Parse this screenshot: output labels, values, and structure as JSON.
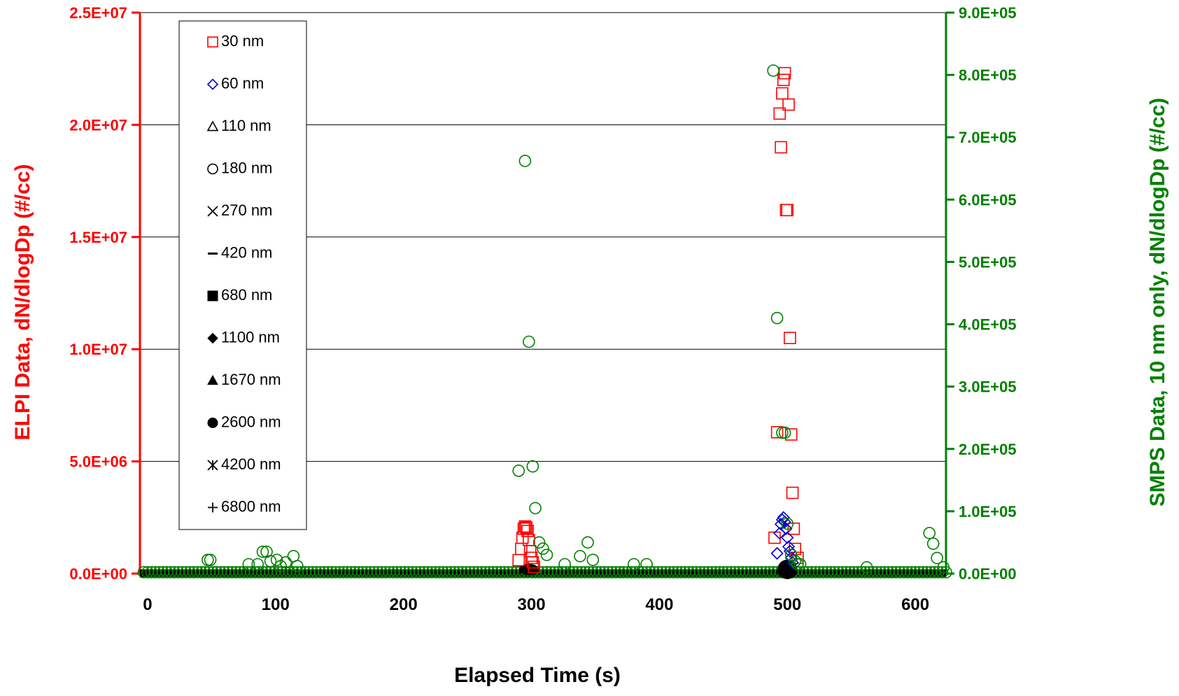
{
  "chart_data": {
    "type": "scatter",
    "xlabel": "Elapsed Time (s)",
    "ylabel_left": "ELPI Data, dN/dlogDp (#/cc)",
    "ylabel_right": "SMPS Data, 10 nm only, dN/dlogDp (#/cc)",
    "xlim": [
      -6,
      624
    ],
    "ylim_left": [
      0,
      25000000
    ],
    "ylim_right": [
      0,
      900000
    ],
    "x_ticks": [
      "0",
      "100",
      "200",
      "300",
      "400",
      "500",
      "600"
    ],
    "x_tick_values": [
      0,
      100,
      200,
      300,
      400,
      500,
      600
    ],
    "y_left_ticks": [
      "0.0E+00",
      "5.0E+06",
      "1.0E+07",
      "1.5E+07",
      "2.0E+07",
      "2.5E+07"
    ],
    "y_left_tick_values": [
      0,
      5000000,
      10000000,
      15000000,
      20000000,
      25000000
    ],
    "y_right_ticks": [
      "0.0E+00",
      "1.0E+05",
      "2.0E+05",
      "3.0E+05",
      "4.0E+05",
      "5.0E+05",
      "6.0E+05",
      "7.0E+05",
      "8.0E+05",
      "9.0E+05"
    ],
    "y_right_tick_values": [
      0,
      100000,
      200000,
      300000,
      400000,
      500000,
      600000,
      700000,
      800000,
      900000
    ],
    "grid": "horizontal",
    "legend_position": "top-left",
    "colors": {
      "left_axis": "#ff0000",
      "right_axis": "#008000",
      "s30": "#ff0000",
      "s60": "#0000cc",
      "other": "#000000",
      "smps": "#008000"
    },
    "series": [
      {
        "name": "30 nm",
        "axis": "left",
        "marker": "open-square",
        "color": "#ff0000",
        "x": [
          290,
          292,
          293,
          294,
          295,
          296,
          297,
          298,
          299,
          300,
          301,
          302,
          490,
          492,
          494,
          495,
          496,
          497,
          498,
          499,
          500,
          501,
          502,
          503,
          504,
          505,
          506,
          508
        ],
        "y": [
          600000,
          1100000,
          1600000,
          2000000,
          2100000,
          2050000,
          1900000,
          1500000,
          1000000,
          700000,
          500000,
          300000,
          1600000,
          6300000,
          20500000,
          19000000,
          21400000,
          22000000,
          22300000,
          16200000,
          16200000,
          20900000,
          10500000,
          6200000,
          3600000,
          2000000,
          1100000,
          700000
        ]
      },
      {
        "name": "60 nm",
        "axis": "left",
        "marker": "open-diamond",
        "color": "#0000cc",
        "x": [
          492,
          494,
          495,
          496,
          497,
          498,
          499,
          500,
          501,
          502,
          503,
          504
        ],
        "y": [
          900000,
          1800000,
          2200000,
          2400000,
          2500000,
          2300000,
          2000000,
          1600000,
          1200000,
          1000000,
          700000,
          500000
        ]
      },
      {
        "name": "110 nm",
        "axis": "left",
        "marker": "open-triangle",
        "color": "#000000",
        "x": [],
        "y": []
      },
      {
        "name": "180 nm",
        "axis": "left",
        "marker": "open-circle",
        "color": "#000000",
        "x": [],
        "y": []
      },
      {
        "name": "270 nm",
        "axis": "left",
        "marker": "x",
        "color": "#000000",
        "x": [],
        "y": []
      },
      {
        "name": "420 nm",
        "axis": "left",
        "marker": "dash",
        "color": "#000000",
        "x": [],
        "y": []
      },
      {
        "name": "680 nm",
        "axis": "left",
        "marker": "filled-square",
        "color": "#000000",
        "x": [],
        "y": []
      },
      {
        "name": "1100 nm",
        "axis": "left",
        "marker": "filled-diamond",
        "color": "#000000",
        "x": [],
        "y": []
      },
      {
        "name": "1670 nm",
        "axis": "left",
        "marker": "filled-triangle",
        "color": "#000000",
        "x": [],
        "y": []
      },
      {
        "name": "2600 nm",
        "axis": "left",
        "marker": "filled-circle",
        "color": "#000000",
        "x": [],
        "y": []
      },
      {
        "name": "4200 nm",
        "axis": "left",
        "marker": "asterisk",
        "color": "#000000",
        "x": [],
        "y": []
      },
      {
        "name": "6800 nm",
        "axis": "left",
        "marker": "plus",
        "color": "#000000",
        "x": [],
        "y": []
      },
      {
        "name": "",
        "axis": "right",
        "marker": "open-circle",
        "color": "#008000",
        "x": [
          47,
          49,
          79,
          86,
          90,
          93,
          96,
          101,
          104,
          108,
          114,
          117,
          290,
          295,
          298,
          301,
          303,
          306,
          309,
          312,
          326,
          338,
          344,
          348,
          380,
          390,
          489,
          492,
          496,
          498,
          500,
          503,
          506,
          508,
          510,
          562,
          611,
          614,
          617,
          622
        ],
        "y": [
          22000,
          22000,
          15000,
          15000,
          35000,
          35000,
          20000,
          22000,
          12000,
          18000,
          28000,
          12000,
          165000,
          662000,
          372000,
          172000,
          105000,
          50000,
          40000,
          30000,
          15000,
          28000,
          50000,
          22000,
          15000,
          15000,
          807000,
          410000,
          226000,
          226000,
          80000,
          30000,
          20000,
          15000,
          15000,
          10000,
          65000,
          48000,
          25000,
          10000
        ]
      }
    ],
    "baseline_note": "",
    "smps_baseline_x_range": [
      -3,
      624
    ]
  }
}
